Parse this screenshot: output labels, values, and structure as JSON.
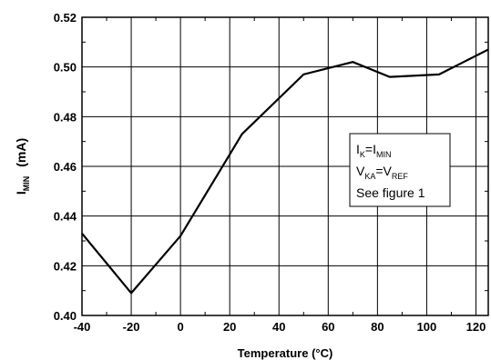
{
  "chart_data": {
    "type": "line",
    "title": "",
    "xlabel": "Temperature (°C)",
    "ylabel": {
      "main": "I",
      "sub": "MIN",
      "unit": "(mA)"
    },
    "xlim": [
      -40,
      125
    ],
    "ylim": [
      0.4,
      0.52
    ],
    "grid": true,
    "x_ticks": [
      -40,
      -20,
      0,
      20,
      40,
      60,
      80,
      100,
      120
    ],
    "y_ticks": [
      0.4,
      0.42,
      0.44,
      0.46,
      0.48,
      0.5,
      0.52
    ],
    "x_tick_labels": [
      "-40",
      "-20",
      "0",
      "20",
      "40",
      "60",
      "80",
      "100",
      "120"
    ],
    "y_tick_labels": [
      "0.40",
      "0.42",
      "0.44",
      "0.46",
      "0.48",
      "0.50",
      "0.52"
    ],
    "series": [
      {
        "x": [
          -40,
          -20,
          0,
          25,
          50,
          70,
          85,
          105,
          125
        ],
        "y": [
          0.433,
          0.409,
          0.432,
          0.473,
          0.497,
          0.502,
          0.496,
          0.497,
          0.507
        ]
      }
    ],
    "annotation": {
      "line1": {
        "a": "I",
        "a_sub": "K",
        "eq": "=I",
        "b_sub": "MIN"
      },
      "line2": {
        "a": "V",
        "a_sub": "KA",
        "eq": "=V",
        "b_sub": "REF"
      },
      "line3": "See figure 1"
    }
  }
}
